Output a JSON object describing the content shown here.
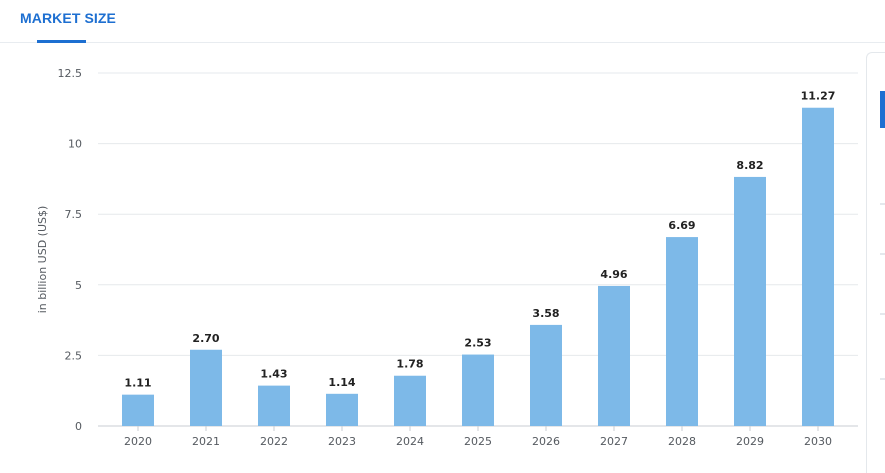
{
  "header": {
    "tab_label": "MARKET SIZE"
  },
  "colors": {
    "accent": "#1d6fd1",
    "bar": "#7db9e8",
    "grid": "#e6e9ec"
  },
  "chart_data": {
    "type": "bar",
    "categories": [
      "2020",
      "2021",
      "2022",
      "2023",
      "2024",
      "2025",
      "2026",
      "2027",
      "2028",
      "2029",
      "2030"
    ],
    "values": [
      1.11,
      2.7,
      1.43,
      1.14,
      1.78,
      2.53,
      3.58,
      4.96,
      6.69,
      8.82,
      11.27
    ],
    "value_labels": [
      "1.11",
      "2.70",
      "1.43",
      "1.14",
      "1.78",
      "2.53",
      "3.58",
      "4.96",
      "6.69",
      "8.82",
      "11.27"
    ],
    "ylabel": "in billion USD (US$)",
    "ylim": [
      0,
      12.5
    ],
    "yticks": [
      0,
      2.5,
      5,
      7.5,
      10,
      12.5
    ],
    "ytick_labels": [
      "0",
      "2.5",
      "5",
      "7.5",
      "10",
      "12.5"
    ],
    "grid": true
  }
}
